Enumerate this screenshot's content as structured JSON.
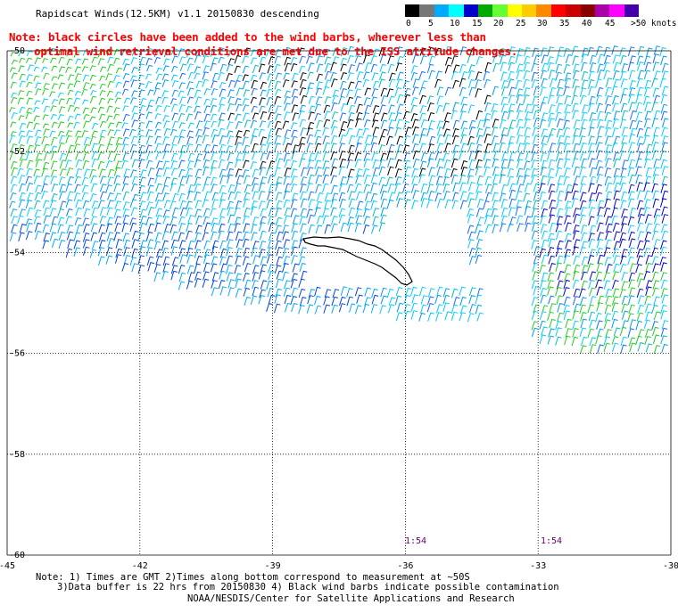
{
  "title": "Rapidscat Winds(12.5KM) v1.1 20150830 descending",
  "note": {
    "line1": "Note: black circles have been added to the wind barbs, wherever less than",
    "line2": "optimal wind retrieval conditions are met due to the ISS attitude changes."
  },
  "colorbar": {
    "colors": [
      "#000000",
      "#777777",
      "#00aaff",
      "#00ffff",
      "#0000cc",
      "#00aa00",
      "#66ff33",
      "#ffff00",
      "#ffcc00",
      "#ff8800",
      "#ff0000",
      "#cc0000",
      "#880000",
      "#aa00aa",
      "#ff00ff",
      "#4400aa"
    ],
    "labels": [
      "0",
      "5",
      "10",
      "15",
      "20",
      "25",
      "30",
      "35",
      "40",
      "45",
      ">50 knots"
    ]
  },
  "map": {
    "lat_labels": [
      "-50",
      "-52",
      "-54",
      "-56",
      "-58",
      "-60"
    ],
    "lon_labels": [
      "-45",
      "-42",
      "-39",
      "-36",
      "-33",
      "-30"
    ],
    "time_labels": [
      "1:54",
      "1:54"
    ]
  },
  "footer": {
    "line1": "Note: 1) Times are GMT 2)Times along bottom correspond to measurement at ~50S",
    "line2": "3)Data buffer is 22 hrs from 20150830 4) Black wind barbs indicate possible contamination",
    "line3": "NOAA/NESDIS/Center for Satellite Applications and Research"
  }
}
